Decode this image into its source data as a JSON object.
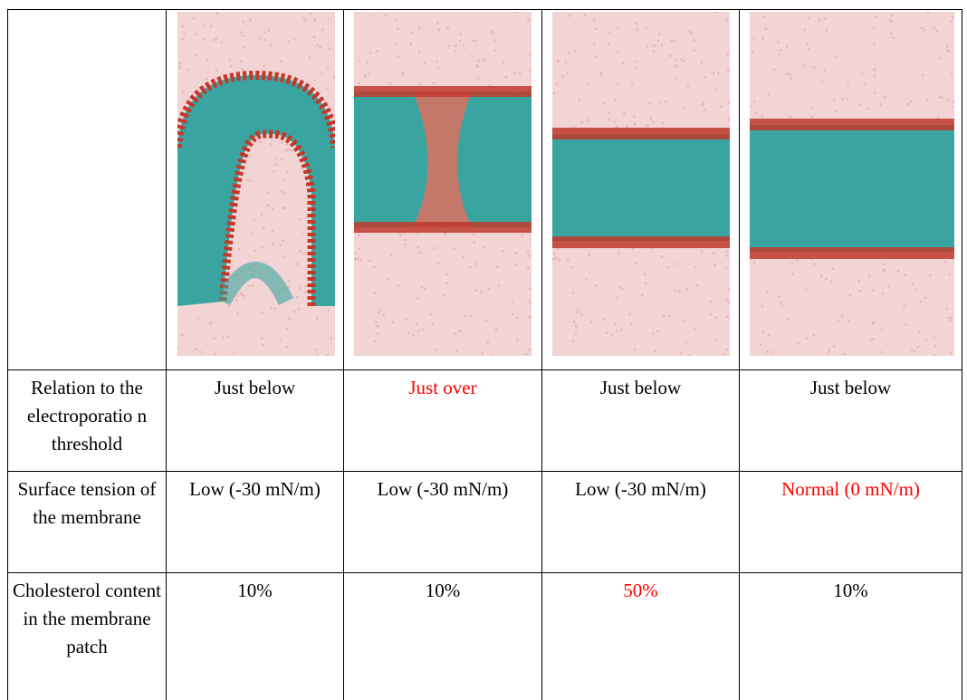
{
  "table": {
    "row_headers": [
      "Relation to the electroporatio n threshold",
      "Surface tension of the membrane",
      "Cholesterol content in the membrane patch"
    ],
    "rows": [
      [
        "Just below",
        "Just over",
        "Just below",
        "Just below"
      ],
      [
        "Low (-30 mN/m)",
        "Low (-30 mN/m)",
        "Low (-30 mN/m)",
        "Normal (0 mN/m)"
      ],
      [
        "10%",
        "10%",
        "50%",
        "10%"
      ]
    ],
    "highlight_color": "#ff0000",
    "highlighted_cells": [
      [
        0,
        1
      ],
      [
        1,
        3
      ],
      [
        2,
        2
      ]
    ]
  },
  "images": [
    {
      "name": "simulation-snapshot",
      "colors": {
        "water": "#e8a3a3",
        "lipid": "#3aa5a0",
        "headgroup": "#c0392b"
      }
    },
    {
      "name": "simulation-snapshot",
      "colors": {
        "water": "#e8a3a3",
        "lipid": "#3aa5a0",
        "headgroup": "#c0392b"
      }
    },
    {
      "name": "simulation-snapshot",
      "colors": {
        "water": "#e8a3a3",
        "lipid": "#3aa5a0",
        "headgroup": "#c0392b"
      }
    },
    {
      "name": "simulation-snapshot",
      "colors": {
        "water": "#e8a3a3",
        "lipid": "#3aa5a0",
        "headgroup": "#c0392b"
      }
    }
  ]
}
